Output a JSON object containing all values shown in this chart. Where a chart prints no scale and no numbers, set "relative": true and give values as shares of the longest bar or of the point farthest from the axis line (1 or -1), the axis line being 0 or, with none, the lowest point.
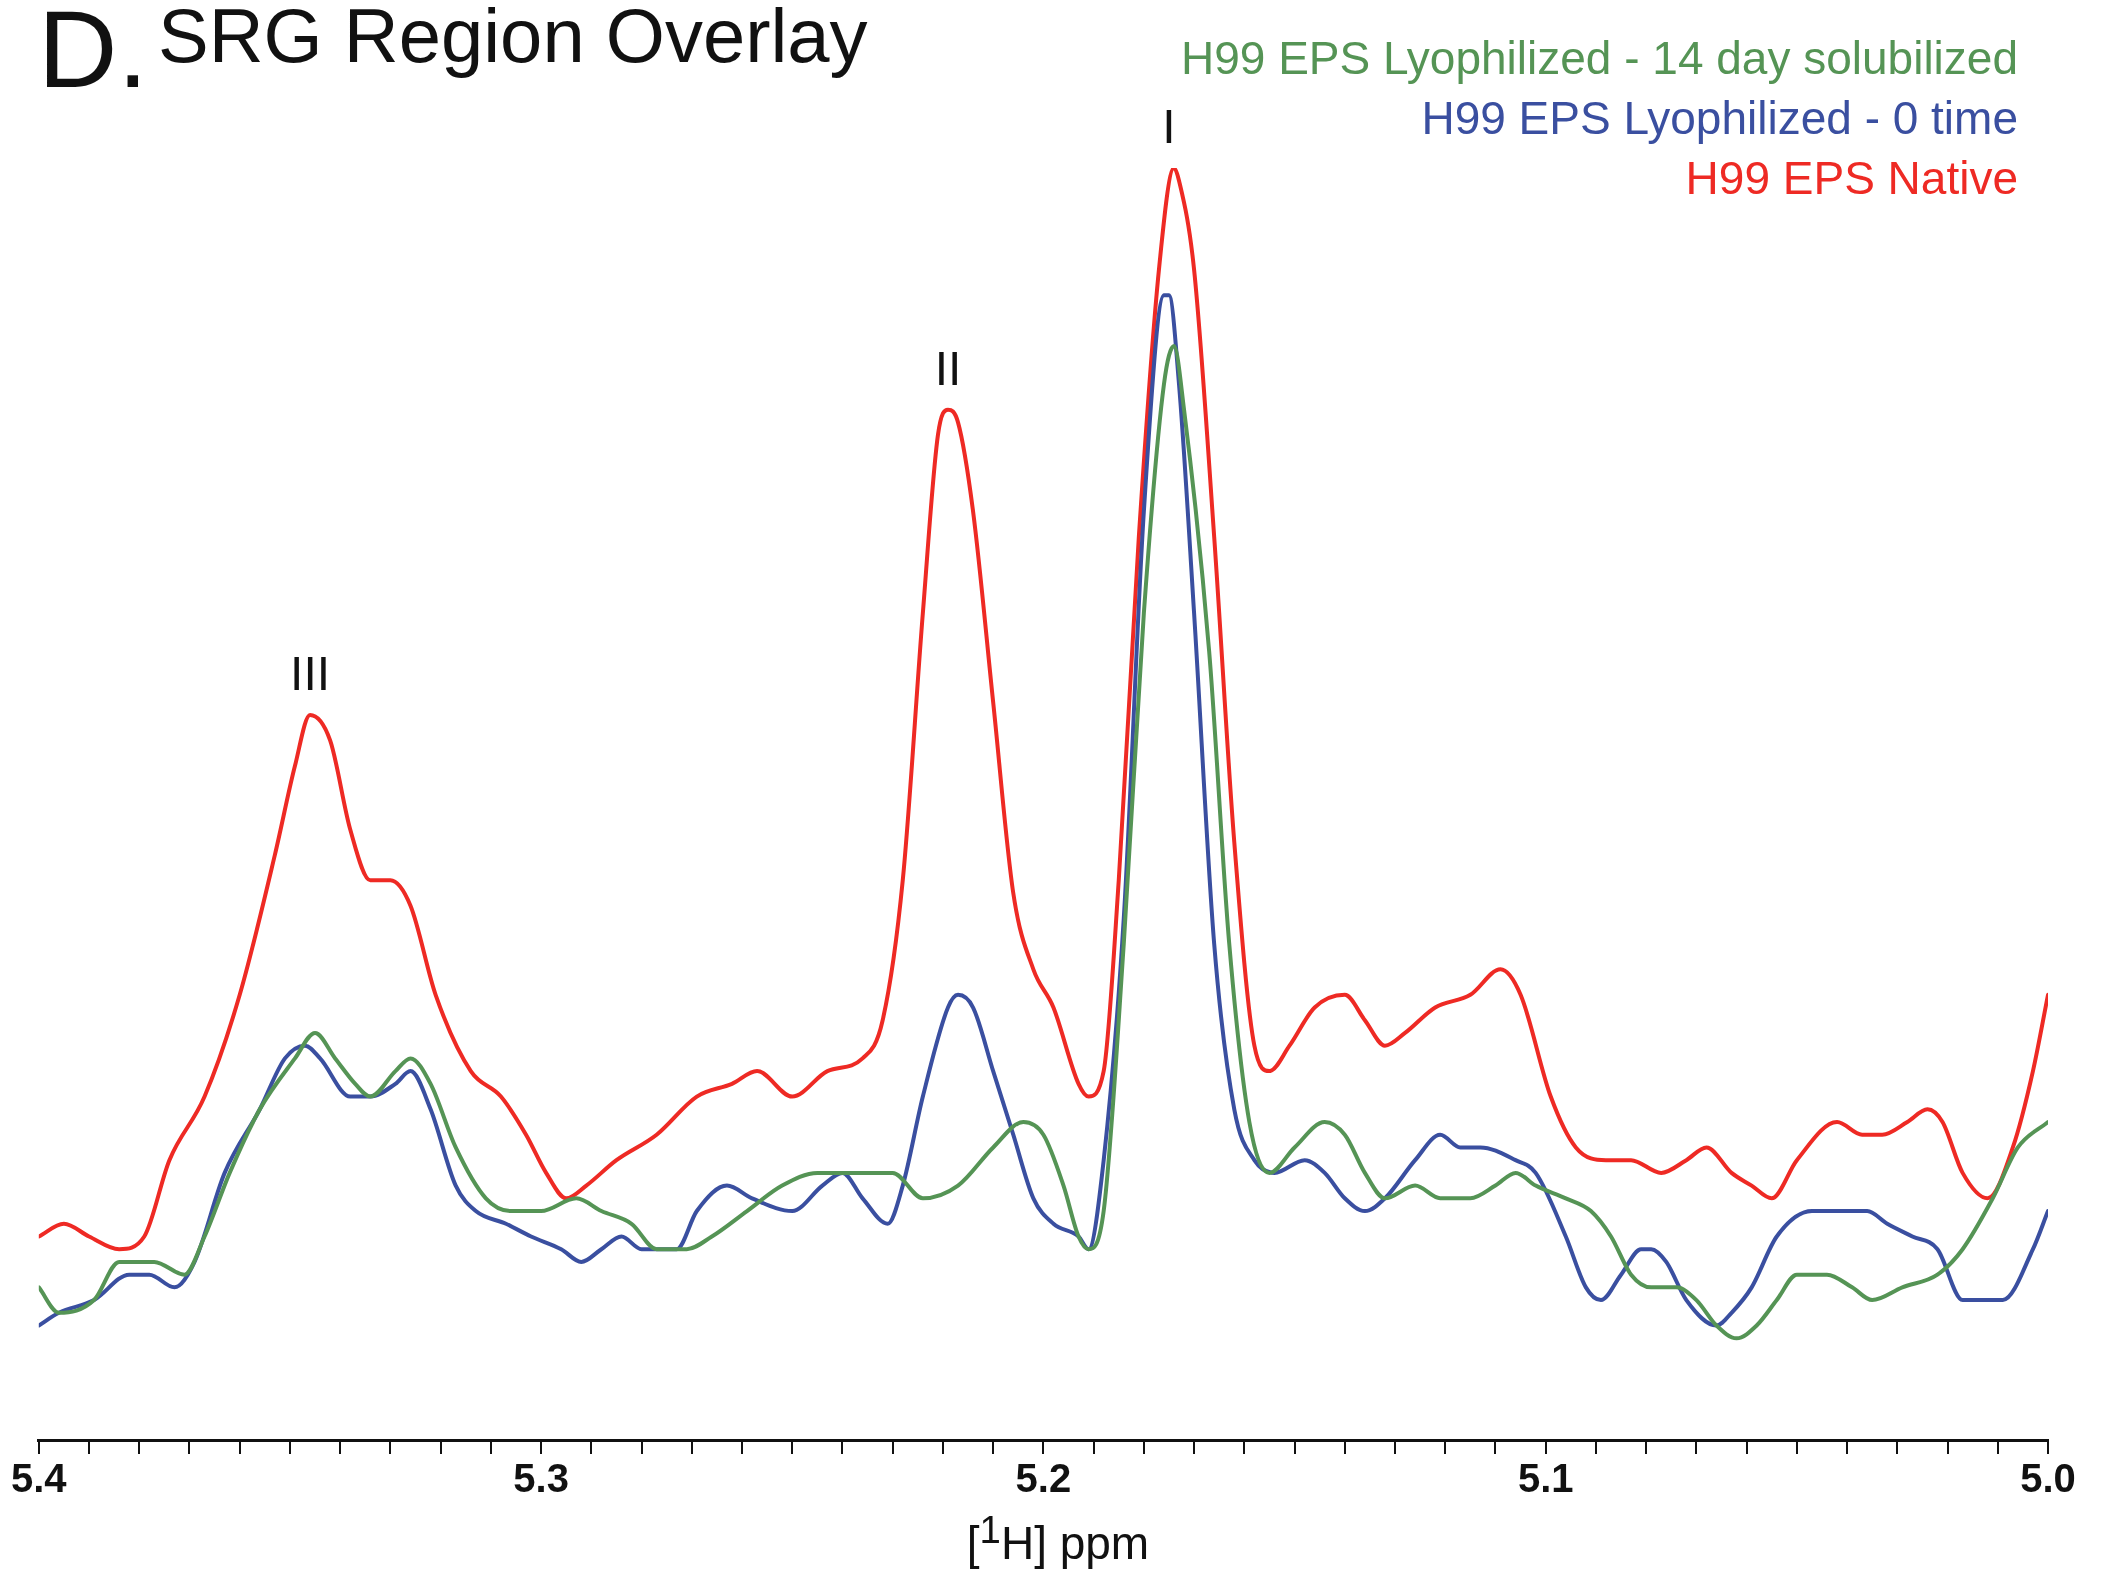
{
  "chart_data": {
    "type": "line",
    "title": "SRG Region Overlay",
    "xlabel": "[$^{1}$H] ppm",
    "relative": true,
    "grid": false,
    "legend": "top right",
    "marker": "none",
    "line_style": "solid",
    "xlim": [
      5.4,
      5.0
    ],
    "xticks": [
      5.4,
      {
        "value": 5.39,
        "label": null
      },
      {
        "value": 5.38,
        "label": null
      },
      {
        "value": 5.37,
        "label": null
      },
      {
        "value": 5.36,
        "label": null
      },
      {
        "value": 5.35,
        "label": null
      },
      {
        "value": 5.34,
        "label": null
      },
      {
        "value": 5.33,
        "label": null
      },
      {
        "value": 5.32,
        "label": null
      },
      {
        "value": 5.31,
        "label": null
      },
      5.3,
      {
        "value": 5.29,
        "label": null
      },
      {
        "value": 5.28,
        "label": null
      },
      {
        "value": 5.27,
        "label": null
      },
      {
        "value": 5.26,
        "label": null
      },
      {
        "value": 5.25,
        "label": null
      },
      {
        "value": 5.24,
        "label": null
      },
      {
        "value": 5.23,
        "label": null
      },
      {
        "value": 5.22,
        "label": null
      },
      {
        "value": 5.21,
        "label": null
      },
      5.2,
      {
        "value": 5.19,
        "label": null
      },
      {
        "value": 5.18,
        "label": null
      },
      {
        "value": 5.17,
        "label": null
      },
      {
        "value": 5.16,
        "label": null
      },
      {
        "value": 5.15,
        "label": null
      },
      {
        "value": 5.14,
        "label": null
      },
      {
        "value": 5.13,
        "label": null
      },
      {
        "value": 5.12,
        "label": null
      },
      {
        "value": 5.11,
        "label": null
      },
      5.1,
      {
        "value": 5.09,
        "label": null
      },
      {
        "value": 5.08,
        "label": null
      },
      {
        "value": 5.07,
        "label": null
      },
      {
        "value": 5.06,
        "label": null
      },
      {
        "value": 5.05,
        "label": null
      },
      {
        "value": 5.04,
        "label": null
      },
      {
        "value": 5.03,
        "label": null
      },
      {
        "value": 5.02,
        "label": null
      },
      {
        "value": 5.01,
        "label": null
      },
      {
        "value": 5,
        "label": "5.0"
      }
    ],
    "annotations": [
      "D.",
      {
        "text": "I",
        "x": 5.175,
        "y": 1.0
      },
      {
        "text": "II",
        "x": 5.219,
        "y": 0.81
      },
      {
        "text": "III",
        "x": 5.346,
        "y": 0.57
      }
    ],
    "series": [
      {
        "name": "H99 EPS Lyophilized - 14 day solubilized",
        "color": "#559455",
        "x": [
          5.4,
          5.396,
          5.389,
          5.384,
          5.38,
          5.377,
          5.371,
          5.367,
          5.362,
          5.356,
          5.349,
          5.345,
          5.341,
          5.337,
          5.334,
          5.329,
          5.326,
          5.322,
          5.317,
          5.311,
          5.306,
          5.3,
          5.293,
          5.288,
          5.282,
          5.277,
          5.271,
          5.266,
          5.259,
          5.252,
          5.245,
          5.237,
          5.23,
          5.224,
          5.217,
          5.21,
          5.204,
          5.2,
          5.196,
          5.193,
          5.191,
          5.188,
          5.184,
          5.18,
          5.176,
          5.174,
          5.172,
          5.167,
          5.163,
          5.159,
          5.155,
          5.15,
          5.144,
          5.14,
          5.136,
          5.132,
          5.126,
          5.121,
          5.115,
          5.11,
          5.106,
          5.102,
          5.096,
          5.091,
          5.087,
          5.083,
          5.079,
          5.074,
          5.07,
          5.066,
          5.062,
          5.058,
          5.054,
          5.05,
          5.044,
          5.039,
          5.035,
          5.029,
          5.022,
          5.017,
          5.011,
          5.006,
          5.0
        ],
        "values": [
          0.12,
          0.1,
          0.11,
          0.14,
          0.14,
          0.14,
          0.13,
          0.16,
          0.21,
          0.26,
          0.3,
          0.32,
          0.3,
          0.28,
          0.27,
          0.29,
          0.3,
          0.28,
          0.23,
          0.19,
          0.18,
          0.18,
          0.19,
          0.18,
          0.17,
          0.15,
          0.15,
          0.16,
          0.18,
          0.2,
          0.21,
          0.21,
          0.21,
          0.19,
          0.2,
          0.23,
          0.25,
          0.24,
          0.2,
          0.16,
          0.15,
          0.18,
          0.39,
          0.65,
          0.83,
          0.86,
          0.81,
          0.62,
          0.39,
          0.25,
          0.21,
          0.23,
          0.25,
          0.24,
          0.21,
          0.19,
          0.2,
          0.19,
          0.19,
          0.2,
          0.21,
          0.2,
          0.19,
          0.18,
          0.16,
          0.13,
          0.12,
          0.12,
          0.11,
          0.09,
          0.08,
          0.09,
          0.11,
          0.13,
          0.13,
          0.12,
          0.11,
          0.12,
          0.13,
          0.15,
          0.19,
          0.23,
          0.25
        ]
      },
      {
        "name": "H99 EPS Lyophilized - 0 time",
        "color": "#3a4fa0",
        "x": [
          5.4,
          5.396,
          5.389,
          5.382,
          5.378,
          5.373,
          5.369,
          5.363,
          5.356,
          5.351,
          5.347,
          5.344,
          5.338,
          5.334,
          5.329,
          5.326,
          5.322,
          5.317,
          5.313,
          5.307,
          5.302,
          5.296,
          5.292,
          5.288,
          5.284,
          5.28,
          5.276,
          5.273,
          5.269,
          5.263,
          5.258,
          5.25,
          5.244,
          5.24,
          5.236,
          5.231,
          5.228,
          5.224,
          5.219,
          5.217,
          5.214,
          5.21,
          5.206,
          5.202,
          5.198,
          5.193,
          5.191,
          5.188,
          5.184,
          5.18,
          5.176,
          5.175,
          5.173,
          5.17,
          5.166,
          5.162,
          5.158,
          5.154,
          5.148,
          5.144,
          5.14,
          5.136,
          5.132,
          5.126,
          5.121,
          5.117,
          5.113,
          5.106,
          5.102,
          5.096,
          5.092,
          5.089,
          5.085,
          5.081,
          5.079,
          5.076,
          5.072,
          5.066,
          5.063,
          5.059,
          5.054,
          5.047,
          5.042,
          5.036,
          5.032,
          5.027,
          5.022,
          5.017,
          5.013,
          5.009,
          5.003,
          5.0
        ],
        "values": [
          0.09,
          0.1,
          0.11,
          0.13,
          0.13,
          0.12,
          0.14,
          0.21,
          0.26,
          0.3,
          0.31,
          0.3,
          0.27,
          0.27,
          0.28,
          0.29,
          0.26,
          0.2,
          0.18,
          0.17,
          0.16,
          0.15,
          0.14,
          0.15,
          0.16,
          0.15,
          0.15,
          0.15,
          0.18,
          0.2,
          0.19,
          0.18,
          0.2,
          0.21,
          0.19,
          0.17,
          0.2,
          0.27,
          0.34,
          0.35,
          0.34,
          0.29,
          0.24,
          0.19,
          0.17,
          0.16,
          0.15,
          0.22,
          0.41,
          0.73,
          0.9,
          0.9,
          0.83,
          0.65,
          0.39,
          0.26,
          0.22,
          0.21,
          0.22,
          0.21,
          0.19,
          0.18,
          0.19,
          0.22,
          0.24,
          0.23,
          0.23,
          0.22,
          0.21,
          0.16,
          0.12,
          0.11,
          0.13,
          0.15,
          0.15,
          0.14,
          0.11,
          0.09,
          0.1,
          0.12,
          0.16,
          0.18,
          0.18,
          0.18,
          0.17,
          0.16,
          0.15,
          0.11,
          0.11,
          0.11,
          0.15,
          0.18
        ]
      },
      {
        "name": "H99 EPS Native",
        "color": "#ee2a24",
        "x": [
          5.4,
          5.395,
          5.39,
          5.384,
          5.379,
          5.374,
          5.367,
          5.36,
          5.353,
          5.349,
          5.346,
          5.342,
          5.338,
          5.334,
          5.33,
          5.326,
          5.321,
          5.314,
          5.308,
          5.303,
          5.299,
          5.295,
          5.291,
          5.285,
          5.277,
          5.269,
          5.262,
          5.257,
          5.25,
          5.243,
          5.236,
          5.232,
          5.228,
          5.224,
          5.221,
          5.219,
          5.217,
          5.214,
          5.21,
          5.206,
          5.202,
          5.198,
          5.193,
          5.191,
          5.188,
          5.185,
          5.181,
          5.177,
          5.174,
          5.173,
          5.17,
          5.166,
          5.162,
          5.158,
          5.155,
          5.151,
          5.146,
          5.14,
          5.136,
          5.132,
          5.128,
          5.122,
          5.115,
          5.109,
          5.105,
          5.099,
          5.094,
          5.088,
          5.083,
          5.077,
          5.072,
          5.068,
          5.063,
          5.059,
          5.055,
          5.05,
          5.042,
          5.037,
          5.033,
          5.028,
          5.024,
          5.021,
          5.017,
          5.012,
          5.007,
          5.003,
          5.0
        ],
        "values": [
          0.16,
          0.17,
          0.16,
          0.15,
          0.16,
          0.22,
          0.27,
          0.35,
          0.46,
          0.53,
          0.57,
          0.55,
          0.48,
          0.44,
          0.44,
          0.42,
          0.35,
          0.29,
          0.27,
          0.24,
          0.21,
          0.19,
          0.2,
          0.22,
          0.24,
          0.27,
          0.28,
          0.29,
          0.27,
          0.29,
          0.3,
          0.33,
          0.44,
          0.65,
          0.79,
          0.81,
          0.8,
          0.73,
          0.58,
          0.43,
          0.37,
          0.34,
          0.28,
          0.27,
          0.29,
          0.44,
          0.71,
          0.92,
          1.0,
          0.99,
          0.92,
          0.71,
          0.47,
          0.31,
          0.29,
          0.31,
          0.34,
          0.35,
          0.33,
          0.31,
          0.32,
          0.34,
          0.35,
          0.37,
          0.35,
          0.27,
          0.23,
          0.22,
          0.22,
          0.21,
          0.22,
          0.23,
          0.21,
          0.2,
          0.19,
          0.22,
          0.25,
          0.24,
          0.24,
          0.25,
          0.26,
          0.25,
          0.21,
          0.19,
          0.23,
          0.29,
          0.35
        ]
      }
    ]
  }
}
